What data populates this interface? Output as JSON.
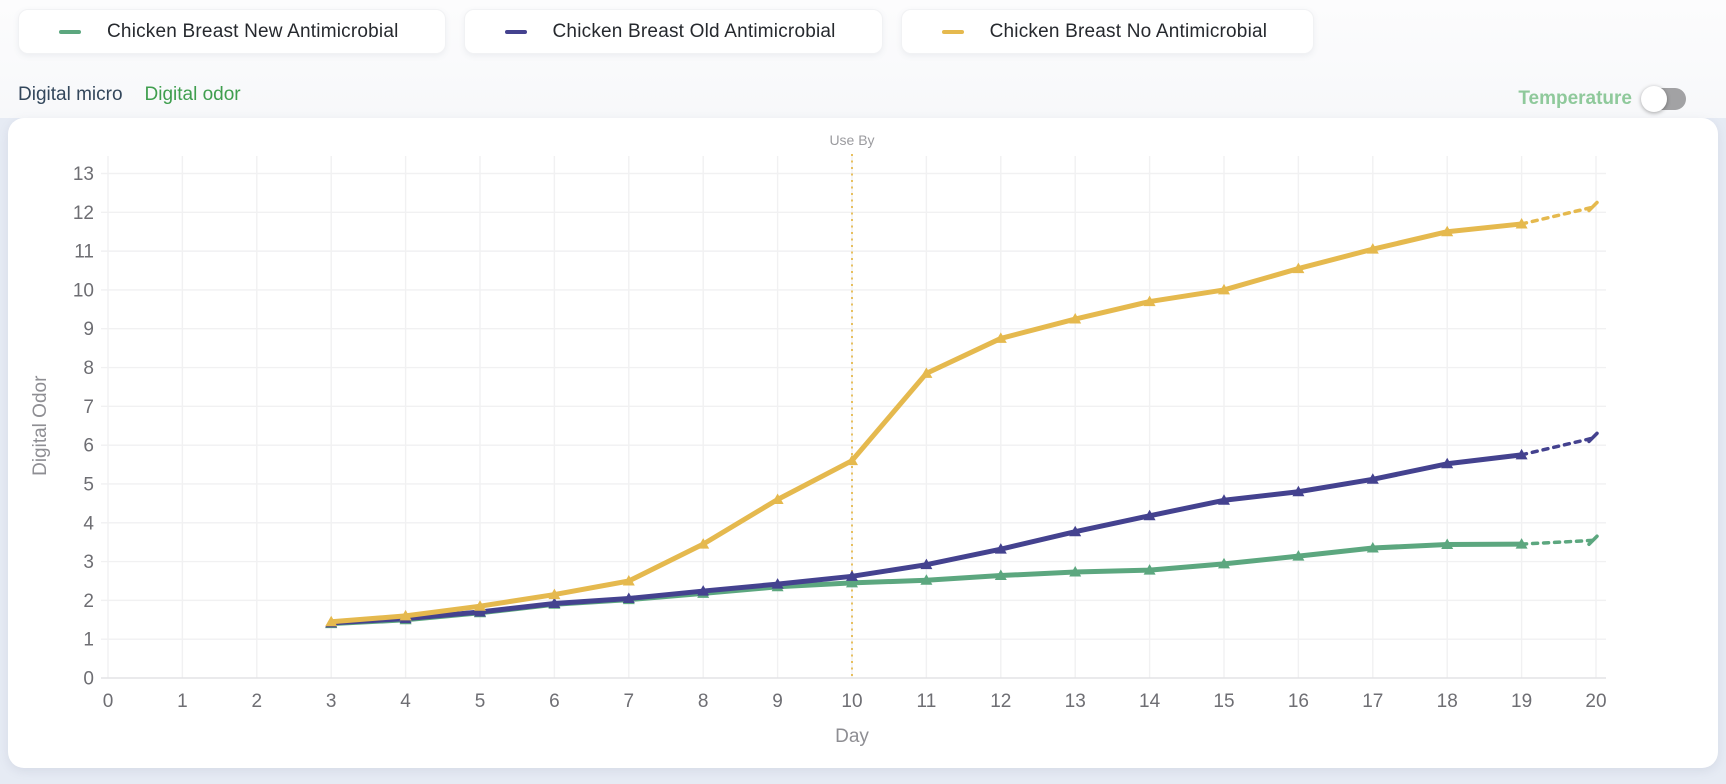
{
  "legend": {
    "items": [
      {
        "label": "Chicken Breast New Antimicrobial",
        "color": "#5ca77f"
      },
      {
        "label": "Chicken Breast Old Antimicrobial",
        "color": "#44428f"
      },
      {
        "label": "Chicken Breast No Antimicrobial",
        "color": "#e5b94e"
      }
    ]
  },
  "tabs": [
    {
      "id": "digital-micro",
      "label": "Digital micro",
      "active": false
    },
    {
      "id": "digital-odor",
      "label": "Digital odor",
      "active": true
    }
  ],
  "temperature_toggle": {
    "label": "Temperature",
    "state": "off"
  },
  "chart_data": {
    "type": "line",
    "title": "",
    "xlabel": "Day",
    "ylabel": "Digital Odor",
    "xlim": [
      0,
      20
    ],
    "ylim": [
      0,
      13
    ],
    "x_tick_step": 1,
    "y_tick_step": 1,
    "grid": true,
    "annotations": [
      {
        "type": "vline",
        "label": "Use By",
        "x": 10,
        "color": "#e5b94e",
        "line_style": "dotted"
      }
    ],
    "x": [
      3,
      4,
      5,
      6,
      7,
      8,
      9,
      10,
      11,
      12,
      13,
      14,
      15,
      16,
      17,
      18,
      19
    ],
    "series": [
      {
        "name": "Chicken Breast New Antimicrobial",
        "color": "#5ca77f",
        "values": [
          1.4,
          1.5,
          1.68,
          1.9,
          2.02,
          2.18,
          2.35,
          2.45,
          2.52,
          2.64,
          2.73,
          2.78,
          2.94,
          3.14,
          3.35,
          3.44,
          3.45
        ],
        "projection": {
          "x": [
            19,
            20
          ],
          "values": [
            3.45,
            3.55
          ]
        }
      },
      {
        "name": "Chicken Breast Old Antimicrobial",
        "color": "#44428f",
        "values": [
          1.42,
          1.53,
          1.7,
          1.92,
          2.05,
          2.24,
          2.42,
          2.62,
          2.92,
          3.32,
          3.77,
          4.18,
          4.58,
          4.8,
          5.12,
          5.52,
          5.75
        ],
        "projection": {
          "x": [
            19,
            20
          ],
          "values": [
            5.75,
            6.2
          ]
        }
      },
      {
        "name": "Chicken Breast No Antimicrobial",
        "color": "#e5b94e",
        "values": [
          1.45,
          1.6,
          1.85,
          2.15,
          2.5,
          3.45,
          4.6,
          5.6,
          7.85,
          8.75,
          9.25,
          9.7,
          10.0,
          10.55,
          11.05,
          11.5,
          11.7
        ],
        "projection": {
          "x": [
            19,
            20
          ],
          "values": [
            11.7,
            12.15
          ]
        }
      }
    ],
    "legend_position": "top-left-outside",
    "colors": {
      "grid": "#f1f1f2",
      "axis_line": "#e3e3e6",
      "tick_text": "#6e6e73",
      "axis_title_text": "#8e8e93",
      "annotation_text": "#9b9b9f"
    }
  }
}
